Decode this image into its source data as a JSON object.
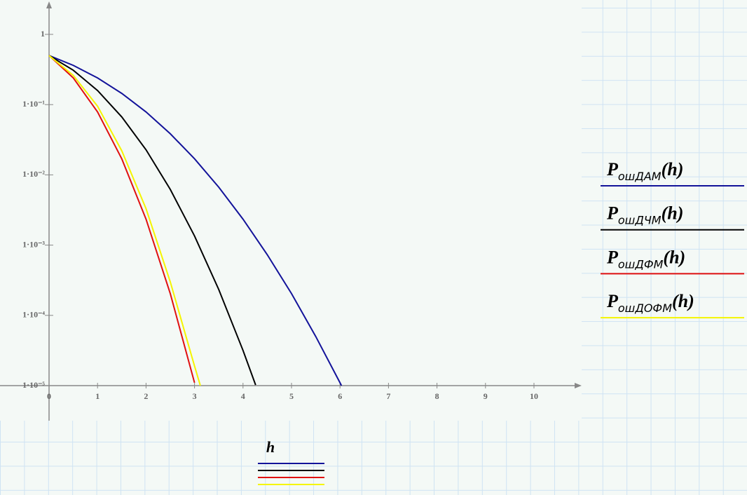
{
  "chart_data": {
    "type": "line",
    "log_y": true,
    "x_label": "h",
    "xlim": [
      0,
      11
    ],
    "ylim": [
      1e-05,
      2.75
    ],
    "xticks": [
      0,
      1,
      2,
      3,
      4,
      5,
      6,
      7,
      8,
      9,
      10
    ],
    "yticks": [
      {
        "value": 1e-05,
        "label": "1·10⁻⁵"
      },
      {
        "value": 0.0001,
        "label": "1·10⁻⁴"
      },
      {
        "value": 0.001,
        "label": "1·10⁻³"
      },
      {
        "value": 0.01,
        "label": "1·10⁻²"
      },
      {
        "value": 0.1,
        "label": "1·10⁻¹"
      },
      1
    ],
    "series": [
      {
        "name": "PошДАМ(h)",
        "color": "#13139a",
        "x": [
          0,
          0.5,
          1,
          1.5,
          2,
          2.5,
          3,
          3.5,
          4,
          4.5,
          5,
          5.5,
          6,
          6.03
        ],
        "values": [
          0.5,
          0.362,
          0.2398,
          0.1444,
          0.0786,
          0.0385,
          0.01695,
          0.00667,
          0.00234,
          0.00073,
          0.000204,
          5e-05,
          1.1e-05,
          1e-05
        ]
      },
      {
        "name": "PошДЧМ(h)",
        "color": "#000000",
        "x": [
          0,
          0.5,
          1,
          1.5,
          2,
          2.5,
          3,
          3.5,
          4,
          4.26
        ],
        "values": [
          0.5,
          0.3085,
          0.1587,
          0.0668,
          0.02275,
          0.00621,
          0.00135,
          0.000233,
          3.17e-05,
          1.02e-05
        ]
      },
      {
        "name": "PошДФМ(h)",
        "color": "#e01010",
        "x": [
          0,
          0.5,
          1,
          1.5,
          2,
          2.5,
          3
        ],
        "values": [
          0.5,
          0.2398,
          0.0786,
          0.0169,
          0.00234,
          0.000204,
          1.1e-05
        ]
      },
      {
        "name": "PошДОФМ(h)",
        "color": "#f5f500",
        "x": [
          0,
          0.5,
          1,
          1.5,
          2,
          2.5,
          3,
          3.12
        ],
        "values": [
          0.5,
          0.26,
          0.095,
          0.022,
          0.0033,
          0.0003,
          1.9e-05,
          1e-05
        ]
      }
    ]
  }
}
